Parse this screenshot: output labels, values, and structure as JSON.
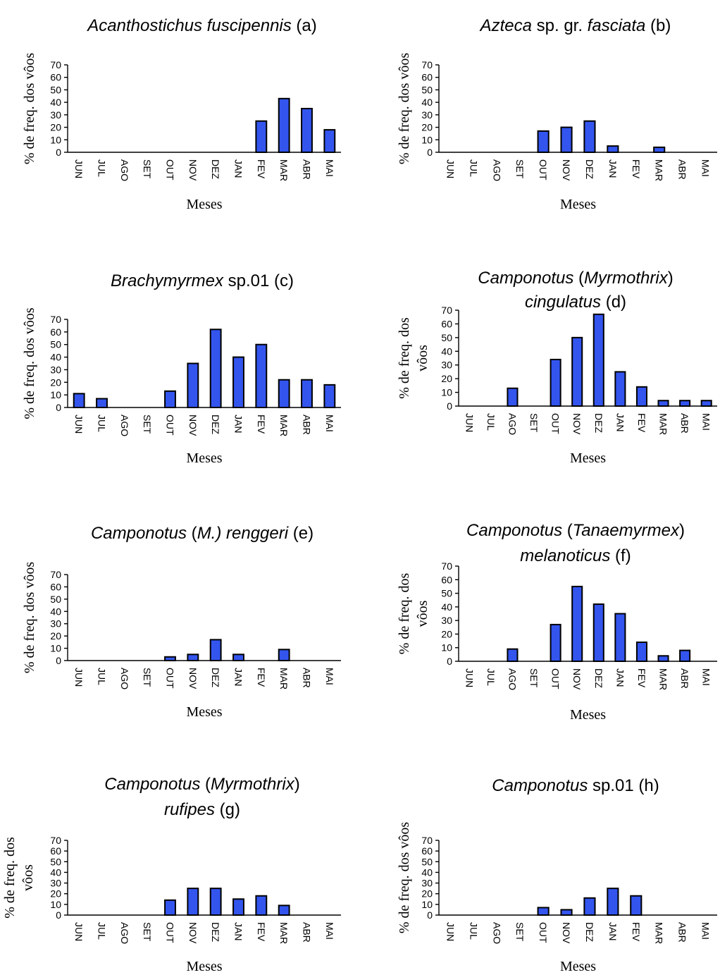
{
  "chart_data": [
    {
      "type": "bar",
      "title": [
        [
          [
            "Acanthostichus fuscipennis",
            true
          ],
          [
            "   (a)",
            false
          ]
        ]
      ],
      "ylabel": [
        "% de freq. dos vôos"
      ],
      "xlabel": "Meses",
      "ylim": [
        0,
        70
      ],
      "yticks": [
        "0",
        "10",
        "20",
        "30",
        "40",
        "50",
        "60",
        "70"
      ],
      "categories": [
        "JUN",
        "JUL",
        "AGO",
        "SET",
        "OUT",
        "NOV",
        "DEZ",
        "JAN",
        "FEV",
        "MAR",
        "ABR",
        "MAI"
      ],
      "values": [
        0,
        0,
        0,
        0,
        0,
        0,
        0,
        0,
        25,
        43,
        35,
        18
      ],
      "bar_color": "#3355ee",
      "grid": false,
      "legend": "none"
    },
    {
      "type": "bar",
      "title": [
        [
          [
            "Azteca",
            true
          ],
          [
            " sp. gr. ",
            false
          ],
          [
            "fasciata",
            true
          ],
          [
            "   (b)",
            false
          ]
        ]
      ],
      "ylabel": [
        "% de freq. dos vôos"
      ],
      "xlabel": "Meses",
      "ylim": [
        0,
        70
      ],
      "yticks": [
        "0",
        "10",
        "20",
        "30",
        "40",
        "50",
        "60",
        "70"
      ],
      "categories": [
        "JUN",
        "JUL",
        "AGO",
        "SET",
        "OUT",
        "NOV",
        "DEZ",
        "JAN",
        "FEV",
        "MAR",
        "ABR",
        "MAI"
      ],
      "values": [
        0,
        0,
        0,
        0,
        17,
        20,
        25,
        5,
        0,
        4,
        0,
        0
      ],
      "bar_color": "#3355ee",
      "grid": false,
      "legend": "none"
    },
    {
      "type": "bar",
      "title": [
        [
          [
            "Brachymyrmex",
            true
          ],
          [
            " sp.01 ",
            false
          ],
          [
            "(c)",
            false
          ]
        ]
      ],
      "ylabel": [
        "% de freq. dos vôos"
      ],
      "xlabel": "Meses",
      "ylim": [
        0,
        70
      ],
      "yticks": [
        "0",
        "10",
        "20",
        "30",
        "40",
        "50",
        "60",
        "70"
      ],
      "categories": [
        "JUN",
        "JUL",
        "AGO",
        "SET",
        "OUT",
        "NOV",
        "DEZ",
        "JAN",
        "FEV",
        "MAR",
        "ABR",
        "MAI"
      ],
      "values": [
        11,
        7,
        0,
        0,
        13,
        35,
        62,
        40,
        50,
        22,
        22,
        18
      ],
      "bar_color": "#3355ee",
      "grid": false,
      "legend": "none"
    },
    {
      "type": "bar",
      "title": [
        [
          [
            "Camponotus",
            true
          ],
          [
            " (",
            false
          ],
          [
            "Myrmothrix",
            true
          ],
          [
            ")",
            false
          ]
        ],
        [
          [
            "cingulatus",
            true
          ],
          [
            "   (d)",
            false
          ]
        ]
      ],
      "ylabel": [
        "% de freq. dos",
        "vôos"
      ],
      "xlabel": "Meses",
      "ylim": [
        0,
        70
      ],
      "yticks": [
        "0",
        "10",
        "20",
        "30",
        "40",
        "50",
        "60",
        "70"
      ],
      "categories": [
        "JUN",
        "JUL",
        "AGO",
        "SET",
        "OUT",
        "NOV",
        "DEZ",
        "JAN",
        "FEV",
        "MAR",
        "ABR",
        "MAI"
      ],
      "values": [
        0,
        0,
        13,
        0,
        34,
        50,
        67,
        25,
        14,
        4,
        4,
        4
      ],
      "bar_color": "#3355ee",
      "grid": false,
      "legend": "none"
    },
    {
      "type": "bar",
      "title": [
        [
          [
            "Camponotus",
            true
          ],
          [
            " (",
            false
          ],
          [
            "M.)  renggeri",
            true
          ],
          [
            "   (e)",
            false
          ]
        ]
      ],
      "ylabel": [
        "% de freq. dos vôos"
      ],
      "xlabel": "Meses",
      "ylim": [
        0,
        70
      ],
      "yticks": [
        "0",
        "10",
        "20",
        "30",
        "40",
        "50",
        "60",
        "70"
      ],
      "categories": [
        "JUN",
        "JUL",
        "AGO",
        "SET",
        "OUT",
        "NOV",
        "DEZ",
        "JAN",
        "FEV",
        "MAR",
        "ABR",
        "MAI"
      ],
      "values": [
        0,
        0,
        0,
        0,
        3,
        5,
        17,
        5,
        0,
        9,
        0,
        0
      ],
      "bar_color": "#3355ee",
      "grid": false,
      "legend": "none"
    },
    {
      "type": "bar",
      "title": [
        [
          [
            "Camponotus",
            true
          ],
          [
            " (",
            false
          ],
          [
            "Tanaemyrmex",
            true
          ],
          [
            ")",
            false
          ]
        ],
        [
          [
            "melanoticus",
            true
          ],
          [
            "   (f)",
            false
          ]
        ]
      ],
      "ylabel": [
        "% de freq. dos",
        "vôos"
      ],
      "xlabel": "Meses",
      "ylim": [
        0,
        70
      ],
      "yticks": [
        "0",
        "10",
        "20",
        "30",
        "40",
        "50",
        "60",
        "70"
      ],
      "categories": [
        "JUN",
        "JUL",
        "AGO",
        "SET",
        "OUT",
        "NOV",
        "DEZ",
        "JAN",
        "FEV",
        "MAR",
        "ABR",
        "MAI"
      ],
      "values": [
        0,
        0,
        9,
        0,
        27,
        55,
        42,
        35,
        14,
        4,
        8,
        0
      ],
      "bar_color": "#3355ee",
      "grid": false,
      "legend": "none"
    },
    {
      "type": "bar",
      "title": [
        [
          [
            "Camponotus",
            true
          ],
          [
            " (",
            false
          ],
          [
            "Myrmothrix",
            true
          ],
          [
            ")",
            false
          ]
        ],
        [
          [
            "rufipes",
            true
          ],
          [
            "   (g)",
            false
          ]
        ]
      ],
      "ylabel": [
        "% de freq. dos",
        "vôos"
      ],
      "xlabel": "Meses",
      "ylim": [
        0,
        70
      ],
      "yticks": [
        "0",
        "10",
        "20",
        "30",
        "40",
        "50",
        "60",
        "70"
      ],
      "categories": [
        "JUN",
        "JUL",
        "AGO",
        "SET",
        "OUT",
        "NOV",
        "DEZ",
        "JAN",
        "FEV",
        "MAR",
        "ABR",
        "MAI"
      ],
      "values": [
        0,
        0,
        0,
        0,
        14,
        25,
        25,
        15,
        18,
        9,
        0,
        0
      ],
      "bar_color": "#3355ee",
      "grid": false,
      "legend": "none"
    },
    {
      "type": "bar",
      "title": [
        [
          [
            "Camponotus",
            true
          ],
          [
            " sp.01",
            false
          ],
          [
            "   (h)",
            false
          ]
        ]
      ],
      "ylabel": [
        "% de freq. dos vôos"
      ],
      "xlabel": "Meses",
      "ylim": [
        0,
        70
      ],
      "yticks": [
        "0",
        "10",
        "20",
        "30",
        "40",
        "50",
        "60",
        "70"
      ],
      "categories": [
        "JUN",
        "JUL",
        "AGO",
        "SET",
        "OUT",
        "NOV",
        "DEZ",
        "JAN",
        "FEV",
        "MAR",
        "ABR",
        "MAI"
      ],
      "values": [
        0,
        0,
        0,
        0,
        7,
        5,
        16,
        25,
        18,
        0,
        0,
        0
      ],
      "bar_color": "#3355ee",
      "grid": false,
      "legend": "none"
    }
  ]
}
